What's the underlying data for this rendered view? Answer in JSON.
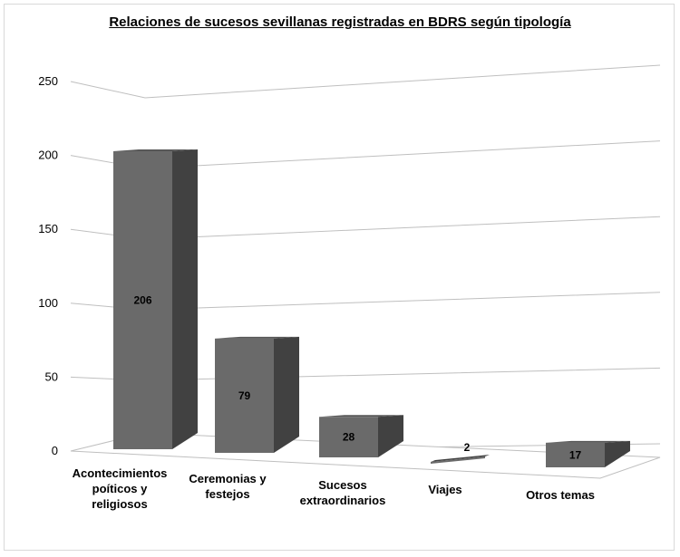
{
  "chart_data": {
    "type": "bar",
    "title": "Relaciones de sucesos sevillanas registradas en BDRS según tipología",
    "categories": [
      [
        "Acontecimientos",
        "poíticos y",
        "religiosos"
      ],
      [
        "Ceremonias y",
        "festejos"
      ],
      [
        "Sucesos",
        "extraordinarios"
      ],
      [
        "Viajes"
      ],
      [
        "Otros temas"
      ]
    ],
    "values": [
      206,
      79,
      28,
      2,
      17
    ],
    "ylim": [
      0,
      250
    ],
    "yticks": [
      0,
      50,
      100,
      150,
      200,
      250
    ],
    "grid": true,
    "legend": "none",
    "colors": {
      "front": "#6a6a6a",
      "side": "#414141",
      "top": "#575757",
      "grid": "#bfbfbf"
    }
  }
}
